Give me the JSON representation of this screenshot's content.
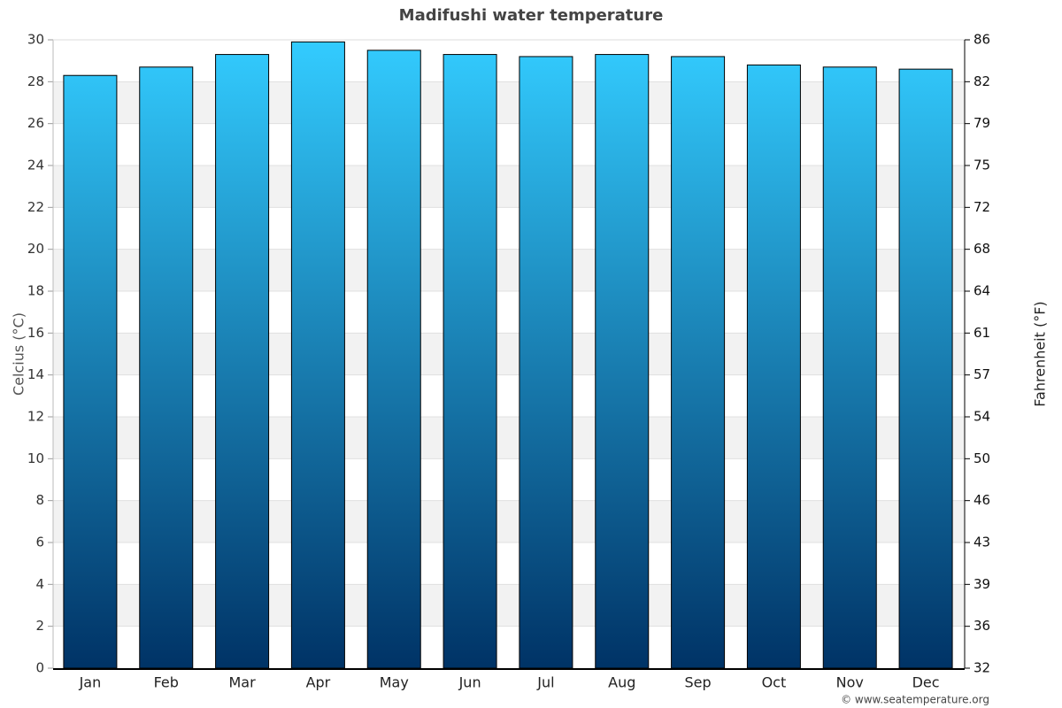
{
  "chart_data": {
    "type": "bar",
    "title": "Madifushi water temperature",
    "categories": [
      "Jan",
      "Feb",
      "Mar",
      "Apr",
      "May",
      "Jun",
      "Jul",
      "Aug",
      "Sep",
      "Oct",
      "Nov",
      "Dec"
    ],
    "values": [
      28.3,
      28.7,
      29.3,
      29.9,
      29.5,
      29.3,
      29.2,
      29.3,
      29.2,
      28.8,
      28.7,
      28.6
    ],
    "color": [
      "#33ccff",
      "#003366"
    ],
    "ylabel": "Celcius (°C)",
    "y2label": "Fahrenheit (°F)",
    "ylim": [
      0,
      30
    ],
    "yticks": [
      0,
      2,
      4,
      6,
      8,
      10,
      12,
      14,
      16,
      18,
      20,
      22,
      24,
      26,
      28,
      30
    ],
    "y2lim": [
      32,
      86
    ],
    "y2ticks": [
      32,
      {
        "value": 35.6,
        "label": "36"
      },
      {
        "value": 39.2,
        "label": "39"
      },
      {
        "value": 42.8,
        "label": "43"
      },
      {
        "value": 46.4,
        "label": "46"
      },
      50,
      {
        "value": 53.6,
        "label": "54"
      },
      {
        "value": 57.2,
        "label": "57"
      },
      {
        "value": 60.8,
        "label": "61"
      },
      {
        "value": 64.4,
        "label": "64"
      },
      68,
      {
        "value": 71.6,
        "label": "72"
      },
      {
        "value": 75.2,
        "label": "75"
      },
      {
        "value": 78.8,
        "label": "79"
      },
      {
        "value": 82.4,
        "label": "82"
      },
      86
    ],
    "grid": true,
    "source": "© www.seatemperature.org"
  }
}
